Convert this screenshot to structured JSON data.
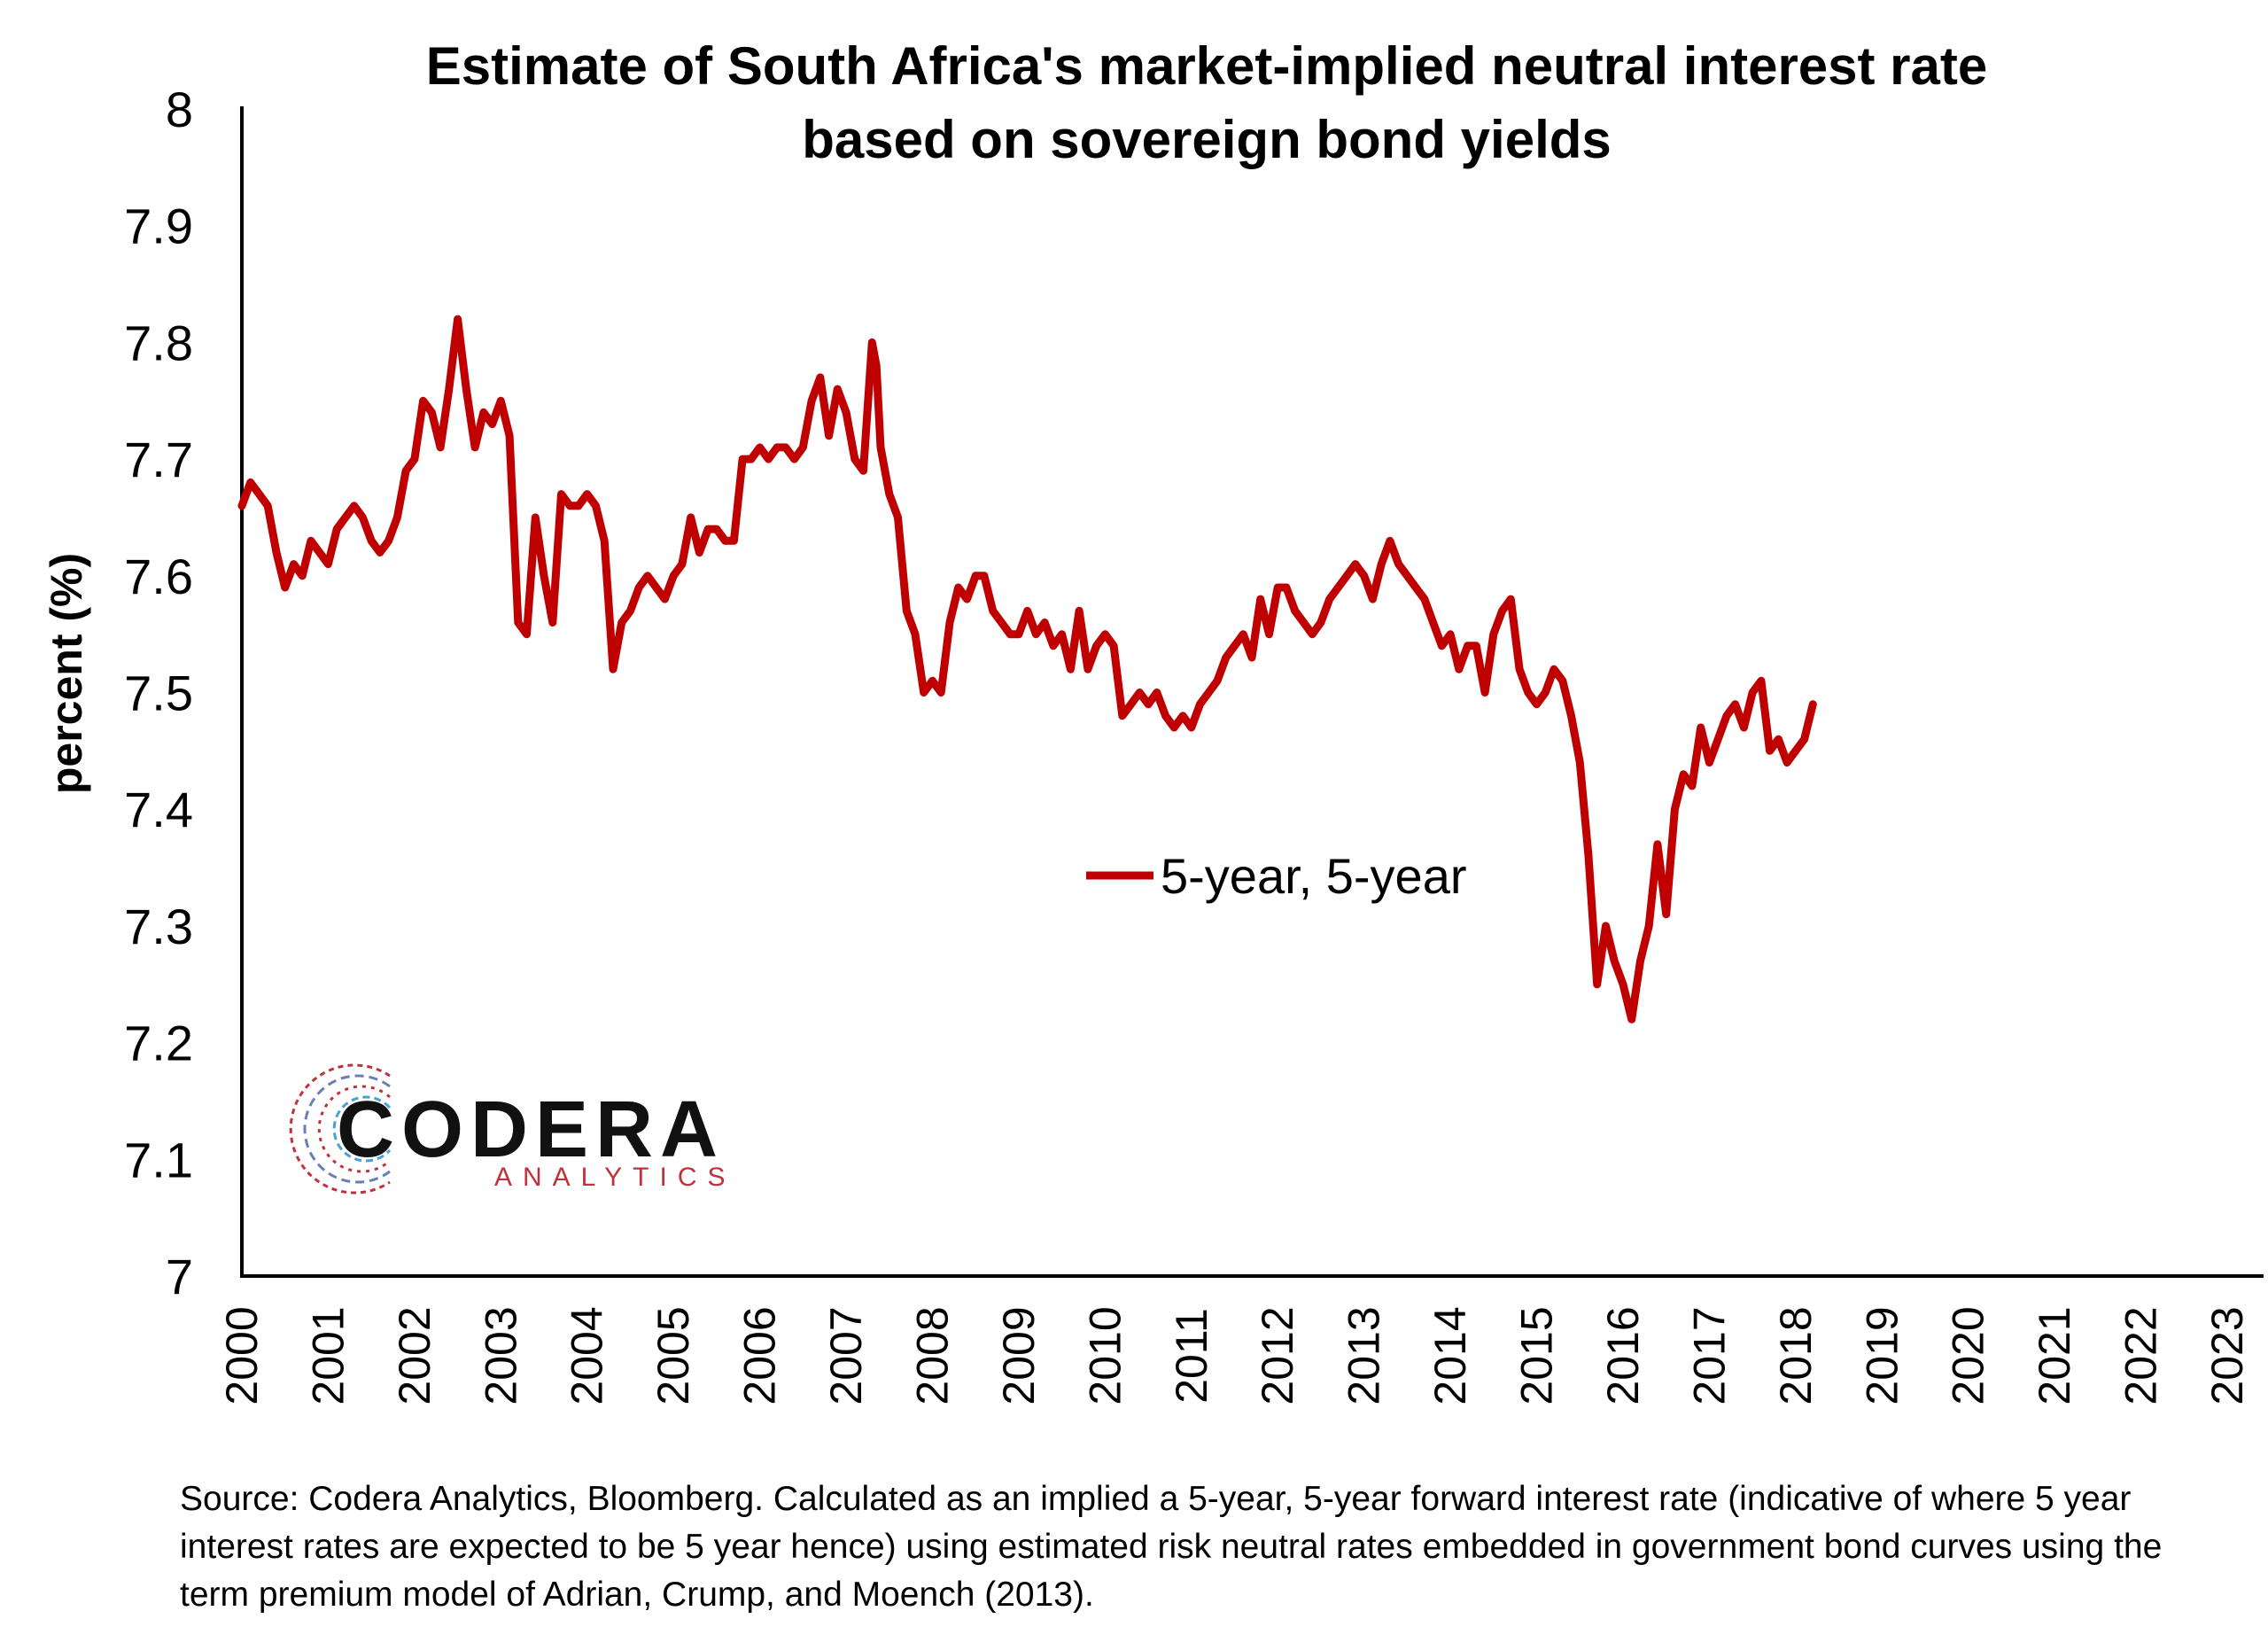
{
  "chart_data": {
    "type": "line",
    "title_lines": [
      "Estimate of South Africa's market-implied neutral interest rate",
      "based on sovereign bond yields"
    ],
    "ylabel": "percent (%)",
    "ylim": [
      7.0,
      8.0
    ],
    "yticks": [
      "8",
      "7.9",
      "7.8",
      "7.7",
      "7.6",
      "7.5",
      "7.4",
      "7.3",
      "7.2",
      "7.1",
      "7"
    ],
    "xlim": [
      2000,
      2023.4
    ],
    "xticks": [
      "2000",
      "2001",
      "2002",
      "2003",
      "2004",
      "2005",
      "2006",
      "2007",
      "2008",
      "2009",
      "2010",
      "2011",
      "2012",
      "2013",
      "2014",
      "2015",
      "2016",
      "2017",
      "2018",
      "2019",
      "2020",
      "2021",
      "2022",
      "2023"
    ],
    "legend": {
      "position": "center",
      "label": "5-year, 5-year"
    },
    "grid": false,
    "series": [
      {
        "name": "5-year, 5-year",
        "color": "#c00000",
        "points": [
          [
            2000.0,
            7.66
          ],
          [
            2000.1,
            7.68
          ],
          [
            2000.2,
            7.67
          ],
          [
            2000.3,
            7.66
          ],
          [
            2000.4,
            7.62
          ],
          [
            2000.5,
            7.59
          ],
          [
            2000.6,
            7.61
          ],
          [
            2000.7,
            7.6
          ],
          [
            2000.8,
            7.63
          ],
          [
            2000.9,
            7.62
          ],
          [
            2001.0,
            7.61
          ],
          [
            2001.1,
            7.64
          ],
          [
            2001.2,
            7.65
          ],
          [
            2001.3,
            7.66
          ],
          [
            2001.4,
            7.65
          ],
          [
            2001.5,
            7.63
          ],
          [
            2001.6,
            7.62
          ],
          [
            2001.7,
            7.63
          ],
          [
            2001.8,
            7.65
          ],
          [
            2001.9,
            7.69
          ],
          [
            2002.0,
            7.7
          ],
          [
            2002.1,
            7.75
          ],
          [
            2002.2,
            7.74
          ],
          [
            2002.3,
            7.71
          ],
          [
            2002.4,
            7.76
          ],
          [
            2002.5,
            7.82
          ],
          [
            2002.6,
            7.76
          ],
          [
            2002.7,
            7.71
          ],
          [
            2002.8,
            7.74
          ],
          [
            2002.9,
            7.73
          ],
          [
            2003.0,
            7.75
          ],
          [
            2003.1,
            7.72
          ],
          [
            2003.2,
            7.56
          ],
          [
            2003.3,
            7.55
          ],
          [
            2003.4,
            7.65
          ],
          [
            2003.5,
            7.6
          ],
          [
            2003.6,
            7.56
          ],
          [
            2003.7,
            7.67
          ],
          [
            2003.8,
            7.66
          ],
          [
            2003.9,
            7.66
          ],
          [
            2004.0,
            7.67
          ],
          [
            2004.1,
            7.66
          ],
          [
            2004.2,
            7.63
          ],
          [
            2004.3,
            7.52
          ],
          [
            2004.4,
            7.56
          ],
          [
            2004.5,
            7.57
          ],
          [
            2004.6,
            7.59
          ],
          [
            2004.7,
            7.6
          ],
          [
            2004.8,
            7.59
          ],
          [
            2004.9,
            7.58
          ],
          [
            2005.0,
            7.6
          ],
          [
            2005.1,
            7.61
          ],
          [
            2005.2,
            7.65
          ],
          [
            2005.3,
            7.62
          ],
          [
            2005.4,
            7.64
          ],
          [
            2005.5,
            7.64
          ],
          [
            2005.6,
            7.63
          ],
          [
            2005.7,
            7.63
          ],
          [
            2005.8,
            7.7
          ],
          [
            2005.9,
            7.7
          ],
          [
            2006.0,
            7.71
          ],
          [
            2006.1,
            7.7
          ],
          [
            2006.2,
            7.71
          ],
          [
            2006.3,
            7.71
          ],
          [
            2006.4,
            7.7
          ],
          [
            2006.5,
            7.71
          ],
          [
            2006.6,
            7.75
          ],
          [
            2006.7,
            7.77
          ],
          [
            2006.8,
            7.72
          ],
          [
            2006.9,
            7.76
          ],
          [
            2007.0,
            7.74
          ],
          [
            2007.1,
            7.7
          ],
          [
            2007.2,
            7.69
          ],
          [
            2007.3,
            7.8
          ],
          [
            2007.35,
            7.78
          ],
          [
            2007.4,
            7.71
          ],
          [
            2007.5,
            7.67
          ],
          [
            2007.6,
            7.65
          ],
          [
            2007.7,
            7.57
          ],
          [
            2007.8,
            7.55
          ],
          [
            2007.9,
            7.5
          ],
          [
            2008.0,
            7.51
          ],
          [
            2008.1,
            7.5
          ],
          [
            2008.2,
            7.56
          ],
          [
            2008.3,
            7.59
          ],
          [
            2008.4,
            7.58
          ],
          [
            2008.5,
            7.6
          ],
          [
            2008.6,
            7.6
          ],
          [
            2008.7,
            7.57
          ],
          [
            2008.8,
            7.56
          ],
          [
            2008.9,
            7.55
          ],
          [
            2009.0,
            7.55
          ],
          [
            2009.1,
            7.57
          ],
          [
            2009.2,
            7.55
          ],
          [
            2009.3,
            7.56
          ],
          [
            2009.4,
            7.54
          ],
          [
            2009.5,
            7.55
          ],
          [
            2009.6,
            7.52
          ],
          [
            2009.7,
            7.57
          ],
          [
            2009.8,
            7.52
          ],
          [
            2009.9,
            7.54
          ],
          [
            2010.0,
            7.55
          ],
          [
            2010.1,
            7.54
          ],
          [
            2010.2,
            7.48
          ],
          [
            2010.3,
            7.49
          ],
          [
            2010.4,
            7.5
          ],
          [
            2010.5,
            7.49
          ],
          [
            2010.6,
            7.5
          ],
          [
            2010.7,
            7.48
          ],
          [
            2010.8,
            7.47
          ],
          [
            2010.9,
            7.48
          ],
          [
            2011.0,
            7.47
          ],
          [
            2011.1,
            7.49
          ],
          [
            2011.2,
            7.5
          ],
          [
            2011.3,
            7.51
          ],
          [
            2011.4,
            7.53
          ],
          [
            2011.5,
            7.54
          ],
          [
            2011.6,
            7.55
          ],
          [
            2011.7,
            7.53
          ],
          [
            2011.8,
            7.58
          ],
          [
            2011.9,
            7.55
          ],
          [
            2012.0,
            7.59
          ],
          [
            2012.1,
            7.59
          ],
          [
            2012.2,
            7.57
          ],
          [
            2012.3,
            7.56
          ],
          [
            2012.4,
            7.55
          ],
          [
            2012.5,
            7.56
          ],
          [
            2012.6,
            7.58
          ],
          [
            2012.7,
            7.59
          ],
          [
            2012.8,
            7.6
          ],
          [
            2012.9,
            7.61
          ],
          [
            2013.0,
            7.6
          ],
          [
            2013.1,
            7.58
          ],
          [
            2013.2,
            7.61
          ],
          [
            2013.3,
            7.63
          ],
          [
            2013.4,
            7.61
          ],
          [
            2013.5,
            7.6
          ],
          [
            2013.6,
            7.59
          ],
          [
            2013.7,
            7.58
          ],
          [
            2013.8,
            7.56
          ],
          [
            2013.9,
            7.54
          ],
          [
            2014.0,
            7.55
          ],
          [
            2014.1,
            7.52
          ],
          [
            2014.2,
            7.54
          ],
          [
            2014.3,
            7.54
          ],
          [
            2014.4,
            7.5
          ],
          [
            2014.5,
            7.55
          ],
          [
            2014.6,
            7.57
          ],
          [
            2014.7,
            7.58
          ],
          [
            2014.8,
            7.52
          ],
          [
            2014.9,
            7.5
          ],
          [
            2015.0,
            7.49
          ],
          [
            2015.1,
            7.5
          ],
          [
            2015.2,
            7.52
          ],
          [
            2015.3,
            7.51
          ],
          [
            2015.4,
            7.48
          ],
          [
            2015.5,
            7.44
          ],
          [
            2015.6,
            7.36
          ],
          [
            2015.7,
            7.25
          ],
          [
            2015.8,
            7.3
          ],
          [
            2015.9,
            7.27
          ],
          [
            2016.0,
            7.25
          ],
          [
            2016.1,
            7.22
          ],
          [
            2016.2,
            7.27
          ],
          [
            2016.3,
            7.3
          ],
          [
            2016.4,
            7.37
          ],
          [
            2016.5,
            7.31
          ],
          [
            2016.6,
            7.4
          ],
          [
            2016.7,
            7.43
          ],
          [
            2016.8,
            7.42
          ],
          [
            2016.9,
            7.47
          ],
          [
            2017.0,
            7.44
          ],
          [
            2017.1,
            7.46
          ],
          [
            2017.2,
            7.48
          ],
          [
            2017.3,
            7.49
          ],
          [
            2017.4,
            7.47
          ],
          [
            2017.5,
            7.5
          ],
          [
            2017.6,
            7.51
          ],
          [
            2017.7,
            7.45
          ],
          [
            2017.8,
            7.46
          ],
          [
            2017.9,
            7.44
          ],
          [
            2018.0,
            7.45
          ],
          [
            2018.1,
            7.46
          ],
          [
            2018.2,
            7.49
          ]
        ]
      }
    ]
  },
  "logo": {
    "name": "CODERA",
    "subtitle": "ANALYTICS"
  },
  "source_note": "Source: Codera Analytics, Bloomberg. Calculated as an implied a 5-year, 5-year forward interest rate (indicative of where 5 year interest rates are expected to be 5 year hence) using estimated risk neutral rates embedded in government bond curves using the term premium model of Adrian, Crump, and Moench (2013)."
}
